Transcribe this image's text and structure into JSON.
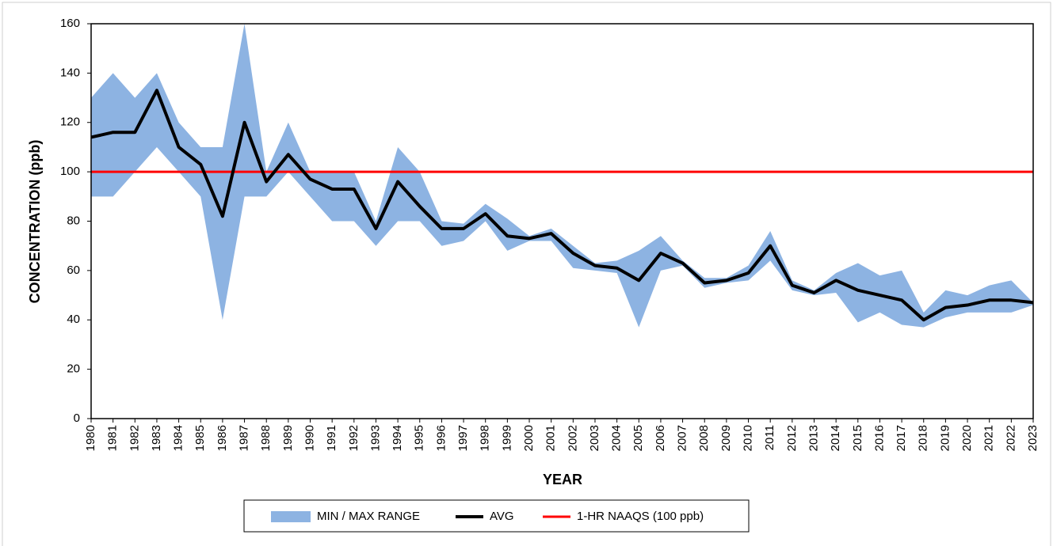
{
  "chart_data": {
    "type": "band-line",
    "x_label": "YEAR",
    "y_label": "CONCENTRATION (ppb)",
    "x": [
      1980,
      1981,
      1982,
      1983,
      1984,
      1985,
      1986,
      1987,
      1988,
      1989,
      1990,
      1991,
      1992,
      1993,
      1994,
      1995,
      1996,
      1997,
      1998,
      1999,
      2000,
      2001,
      2002,
      2003,
      2004,
      2005,
      2006,
      2007,
      2008,
      2009,
      2010,
      2011,
      2012,
      2013,
      2014,
      2015,
      2016,
      2017,
      2018,
      2019,
      2020,
      2021,
      2022,
      2023
    ],
    "xlim": [
      1980,
      2023
    ],
    "ylim": [
      0,
      160
    ],
    "yticks": [
      0,
      20,
      40,
      60,
      80,
      100,
      120,
      140,
      160
    ],
    "band": {
      "name": "MIN / MAX RANGE",
      "color": "#8db3e2",
      "max": [
        130,
        140,
        130,
        140,
        120,
        110,
        110,
        160,
        100,
        120,
        100,
        100,
        100,
        80,
        110,
        100,
        80,
        79,
        87,
        81,
        74,
        77,
        70,
        63,
        64,
        68,
        74,
        64,
        57,
        57,
        62,
        76,
        56,
        52,
        59,
        63,
        58,
        60,
        43,
        52,
        50,
        54,
        56,
        47
      ],
      "min": [
        90,
        90,
        100,
        110,
        100,
        90,
        40,
        90,
        90,
        100,
        90,
        80,
        80,
        70,
        80,
        80,
        70,
        72,
        80,
        68,
        72,
        72,
        61,
        60,
        59,
        37,
        60,
        62,
        53,
        55,
        56,
        64,
        52,
        50,
        51,
        39,
        43,
        38,
        37,
        41,
        43,
        43,
        43,
        46
      ]
    },
    "series": [
      {
        "name": "AVG",
        "color": "#000000",
        "values": [
          114,
          116,
          116,
          133,
          110,
          103,
          82,
          120,
          96,
          107,
          97,
          93,
          93,
          77,
          96,
          86,
          77,
          77,
          83,
          74,
          73,
          75,
          67,
          62,
          61,
          56,
          67,
          63,
          55,
          56,
          59,
          70,
          54,
          51,
          56,
          52,
          50,
          48,
          40,
          45,
          46,
          48,
          48,
          47
        ]
      }
    ],
    "reference_line": {
      "name": "1-HR NAAQS (100 ppb)",
      "value": 100,
      "color": "#ff0000"
    }
  }
}
